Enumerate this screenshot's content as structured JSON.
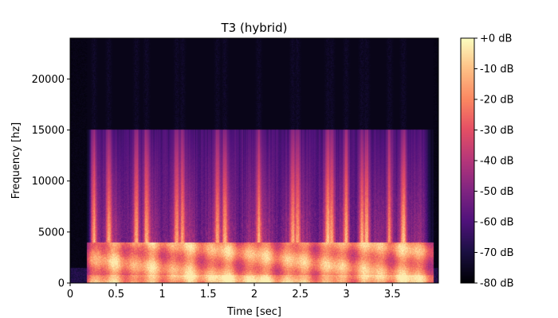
{
  "chart_data": {
    "type": "heatmap",
    "title": "T3 (hybrid)",
    "xlabel": "Time [sec]",
    "ylabel": "Frequency [hz]",
    "xlim": [
      0,
      4.0
    ],
    "ylim": [
      0,
      24000
    ],
    "x_ticks": [
      0,
      0.5,
      1,
      1.5,
      2,
      2.5,
      3,
      3.5
    ],
    "x_tick_labels": [
      "0",
      "0.5",
      "1",
      "1.5",
      "2",
      "2.5",
      "3",
      "3.5"
    ],
    "y_ticks": [
      0,
      5000,
      10000,
      15000,
      20000
    ],
    "y_tick_labels": [
      "0",
      "5000",
      "10000",
      "15000",
      "20000"
    ],
    "colormap": "magma",
    "colorbar": {
      "range": [
        -80,
        0
      ],
      "ticks": [
        0,
        -10,
        -20,
        -30,
        -40,
        -50,
        -60,
        -70,
        -80
      ],
      "tick_labels": [
        "+0 dB",
        "-10 dB",
        "-20 dB",
        "-30 dB",
        "-40 dB",
        "-50 dB",
        "-60 dB",
        "-70 dB",
        "-80 dB"
      ]
    },
    "speech_span_sec": [
      0.18,
      3.95
    ],
    "low_band_hz": [
      0,
      4000
    ],
    "max_energy_hz": 15000,
    "bursts_sec": [
      0.26,
      0.42,
      0.72,
      0.83,
      1.16,
      1.22,
      1.6,
      1.68,
      2.05,
      2.42,
      2.47,
      2.8,
      2.84,
      3.0,
      3.17,
      3.22,
      3.47,
      3.62
    ]
  }
}
